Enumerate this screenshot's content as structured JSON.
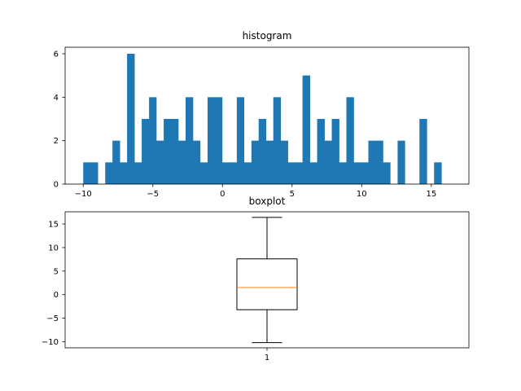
{
  "colors": {
    "bar": "#1f77b4",
    "median": "#ff7f0e",
    "axis": "#000000",
    "background": "#ffffff"
  },
  "chart_data": [
    {
      "type": "bar",
      "title": "histogram",
      "xlabel": "",
      "ylabel": "",
      "xlim": [
        -11.3,
        17.7
      ],
      "ylim": [
        0,
        6.3
      ],
      "x_ticks": [
        -10,
        -5,
        0,
        5,
        10,
        15
      ],
      "x_tick_labels": [
        "−10",
        "−5",
        "0",
        "5",
        "10",
        "15"
      ],
      "y_ticks": [
        0,
        2,
        4,
        6
      ],
      "y_tick_labels": [
        "0",
        "2",
        "4",
        "6"
      ],
      "bin_edges": [
        -10,
        -9.47,
        -8.95,
        -8.42,
        -7.9,
        -7.37,
        -6.85,
        -6.32,
        -5.8,
        -5.27,
        -4.75,
        -4.22,
        -3.7,
        -3.17,
        -2.65,
        -2.12,
        -1.6,
        -1.07,
        -0.55,
        -0.02,
        0.5,
        1.03,
        1.55,
        2.08,
        2.6,
        3.13,
        3.65,
        4.18,
        4.7,
        5.23,
        5.75,
        6.28,
        6.8,
        7.33,
        7.85,
        8.38,
        8.9,
        9.43,
        9.95,
        10.48,
        11.0,
        11.53,
        12.05,
        12.58,
        13.1,
        13.63,
        14.15,
        14.68,
        15.2,
        15.73,
        16.25
      ],
      "values": [
        1,
        1,
        0,
        1,
        2,
        1,
        6,
        1,
        3,
        4,
        2,
        3,
        3,
        2,
        4,
        2,
        1,
        4,
        4,
        1,
        1,
        4,
        1,
        2,
        3,
        2,
        4,
        2,
        1,
        1,
        5,
        1,
        3,
        2,
        3,
        1,
        4,
        1,
        1,
        2,
        2,
        1,
        0,
        2,
        0,
        0,
        3,
        0,
        1,
        0
      ]
    },
    {
      "type": "boxplot",
      "title": "boxplot",
      "xlabel": "",
      "ylabel": "",
      "ylim": [
        -11.3,
        17.6
      ],
      "y_ticks": [
        -10,
        -5,
        0,
        5,
        10,
        15
      ],
      "y_tick_labels": [
        "−10",
        "−5",
        "0",
        "5",
        "10",
        "15"
      ],
      "categories": [
        "1"
      ],
      "stats": {
        "whisker_low": -10.2,
        "q1": -3.2,
        "median": 1.5,
        "q3": 7.6,
        "whisker_high": 16.4
      }
    }
  ]
}
